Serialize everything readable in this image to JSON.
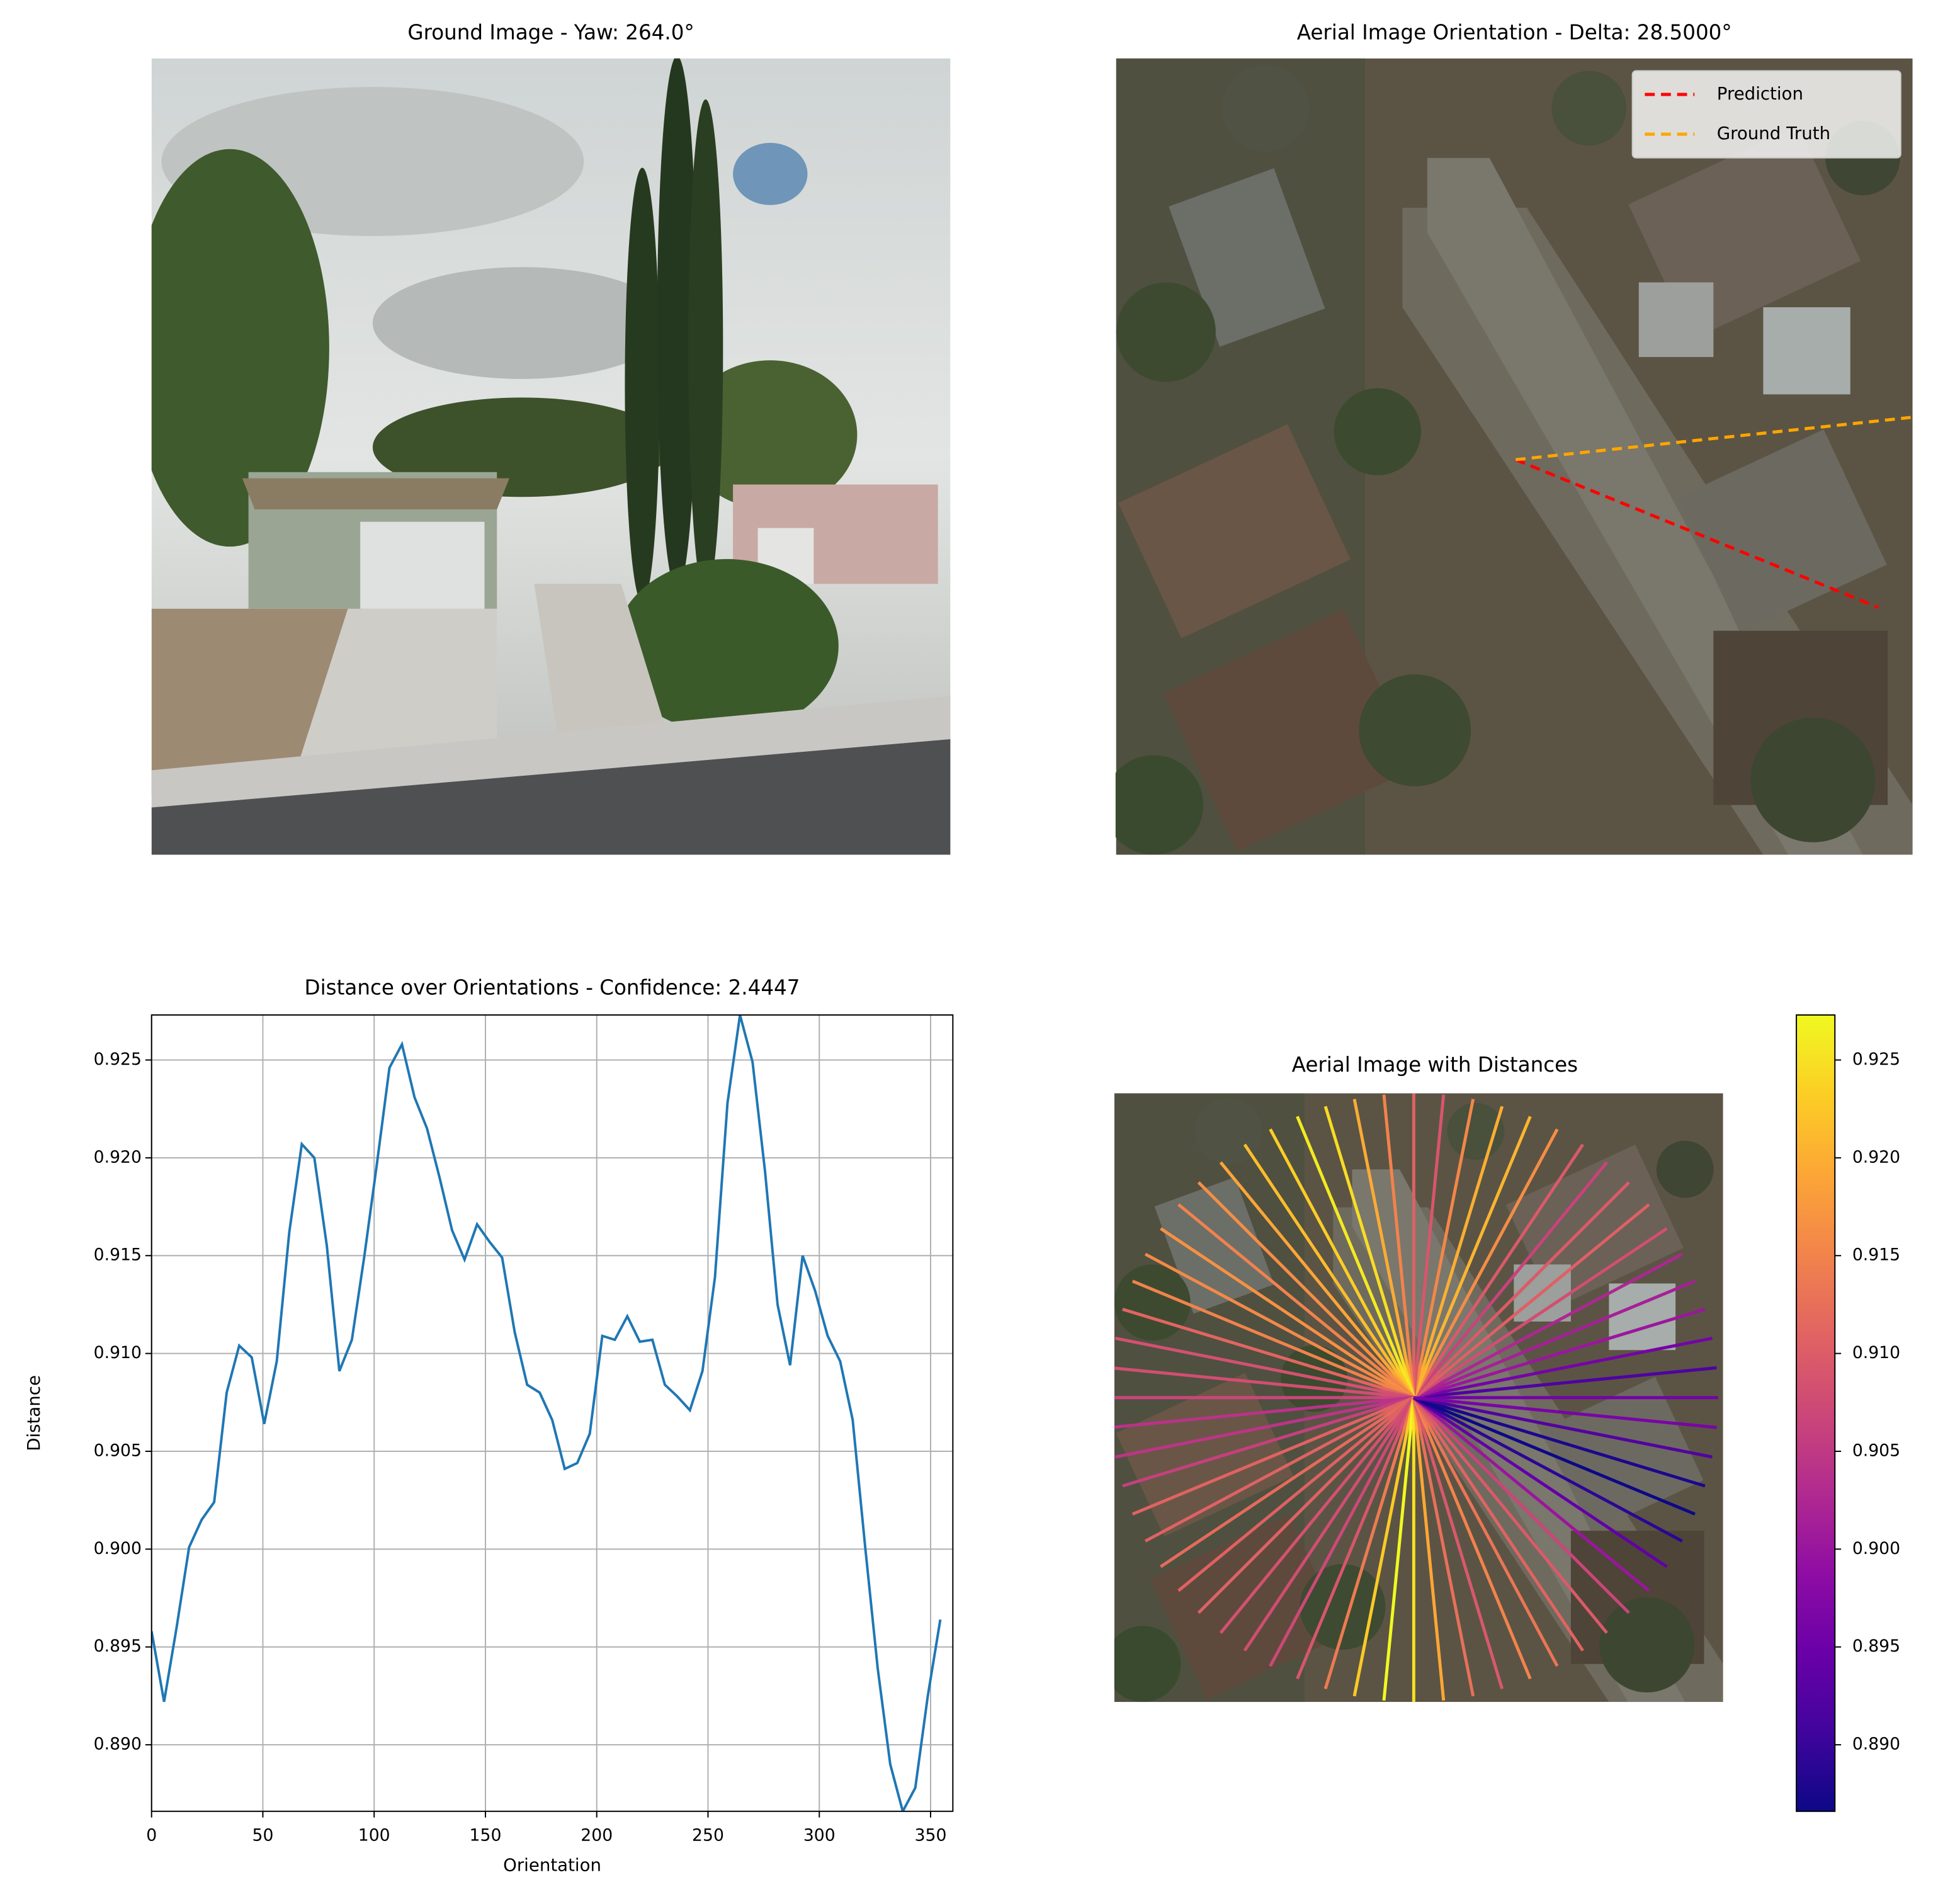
{
  "chart_data": [
    {
      "type": "image",
      "title": "Ground Image - Yaw: 264.0°"
    },
    {
      "type": "image",
      "title": "Aerial Image Orientation - Delta: 28.5000°",
      "legend": [
        {
          "name": "Prediction",
          "color": "#ff0000"
        },
        {
          "name": "Ground Truth",
          "color": "#ffa500"
        }
      ],
      "legend_loc": "upper right"
    },
    {
      "type": "line",
      "title": "Distance over Orientations - Confidence: 2.4447",
      "xlabel": "Orientation",
      "ylabel": "Distance",
      "color": "#1f77b4",
      "grid": true,
      "x": [
        0,
        5.625,
        11.25,
        16.875,
        22.5,
        28.125,
        33.75,
        39.375,
        45,
        50.625,
        56.25,
        61.875,
        67.5,
        73.125,
        78.75,
        84.375,
        90,
        95.625,
        101.25,
        106.875,
        112.5,
        118.125,
        123.75,
        129.375,
        135,
        140.625,
        146.25,
        151.875,
        157.5,
        163.125,
        168.75,
        174.375,
        180,
        185.625,
        191.25,
        196.875,
        202.5,
        208.125,
        213.75,
        219.375,
        225,
        230.625,
        236.25,
        241.875,
        247.5,
        253.125,
        258.75,
        264.375,
        270,
        275.625,
        281.25,
        286.875,
        292.5,
        298.125,
        303.75,
        309.375,
        315,
        320.625,
        326.25,
        331.875,
        337.5,
        343.125,
        348.75,
        354.375
      ],
      "values": [
        0.8958,
        0.8922,
        0.896,
        0.9001,
        0.9015,
        0.9024,
        0.908,
        0.9104,
        0.9098,
        0.9064,
        0.9096,
        0.9162,
        0.9207,
        0.92,
        0.9155,
        0.9091,
        0.9107,
        0.915,
        0.9197,
        0.9246,
        0.9258,
        0.9231,
        0.9215,
        0.919,
        0.9163,
        0.9148,
        0.9166,
        0.9157,
        0.9149,
        0.9111,
        0.9084,
        0.908,
        0.9066,
        0.9041,
        0.9044,
        0.9059,
        0.9109,
        0.9107,
        0.9119,
        0.9106,
        0.9107,
        0.9084,
        0.9078,
        0.9071,
        0.9091,
        0.9139,
        0.9228,
        0.9273,
        0.9249,
        0.9193,
        0.9125,
        0.9094,
        0.915,
        0.9132,
        0.9109,
        0.9096,
        0.9066,
        0.9001,
        0.8939,
        0.889,
        0.8866,
        0.8878,
        0.8925,
        0.8964
      ],
      "xlim": [
        0,
        360
      ],
      "xticks": [
        0,
        50,
        100,
        150,
        200,
        250,
        300,
        350
      ],
      "ylim": [
        0.8866,
        0.9273
      ],
      "yticks": [
        {
          "value": 0.89,
          "label": "0.890"
        },
        0.895,
        {
          "value": 0.9,
          "label": "0.900"
        },
        0.905,
        {
          "value": 0.91,
          "label": "0.910"
        },
        0.915,
        {
          "value": 0.92,
          "label": "0.920"
        },
        0.925
      ]
    },
    {
      "type": "radial",
      "title": "Aerial Image with Distances",
      "colormap": "plasma",
      "clim": [
        0.8866,
        0.9273
      ],
      "cticks": [
        {
          "value": 0.89,
          "label": "0.890"
        },
        0.895,
        {
          "value": 0.9,
          "label": "0.900"
        },
        0.905,
        {
          "value": 0.91,
          "label": "0.910"
        },
        0.915,
        {
          "value": 0.92,
          "label": "0.920"
        },
        0.925
      ]
    }
  ]
}
